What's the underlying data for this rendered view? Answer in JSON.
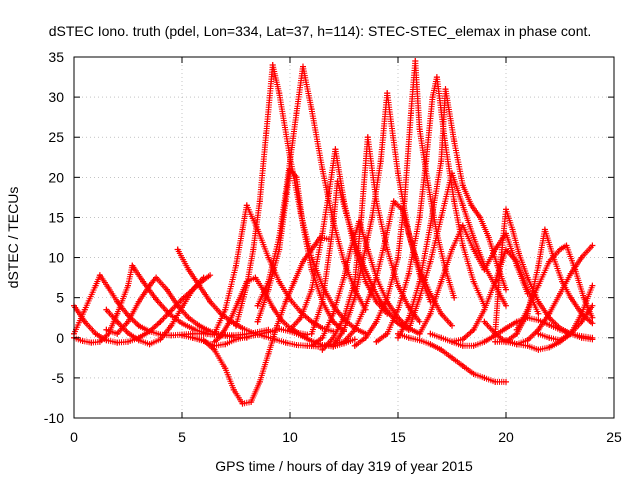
{
  "chart_data": {
    "type": "scatter",
    "title": "dSTEC Iono. truth (pdel, Lon=334, Lat=37, h=114): STEC-STEC_elemax in phase cont.",
    "xlabel": "GPS time / hours of day 319 of year 2015",
    "ylabel": "dSTEC  / TECUs",
    "xlim": [
      0,
      25
    ],
    "ylim": [
      -10,
      35
    ],
    "x_ticks": [
      "0",
      "5",
      "10",
      "15",
      "20",
      "25"
    ],
    "y_ticks": [
      "-10",
      "-5",
      "0",
      "5",
      "10",
      "15",
      "20",
      "25",
      "30",
      "35"
    ],
    "grid": true,
    "marker": "+",
    "color": "#ff0000",
    "series": [
      {
        "x": [
          0.0,
          0.5,
          1.0,
          1.5,
          2.0,
          2.5,
          3.0,
          3.5,
          4.0,
          4.5,
          5.0,
          5.5,
          6.0,
          6.3
        ],
        "y": [
          4.0,
          2.0,
          0.5,
          -0.3,
          -0.6,
          -0.5,
          0.0,
          0.8,
          2.0,
          3.4,
          4.8,
          6.0,
          7.2,
          7.8
        ]
      },
      {
        "x": [
          0.0,
          0.5,
          1.0,
          1.2,
          1.6,
          2.0,
          2.5,
          3.0,
          3.5,
          4.0,
          4.5,
          5.0,
          5.5,
          6.0,
          6.5,
          7.0
        ],
        "y": [
          0.5,
          3.5,
          6.5,
          7.8,
          6.2,
          4.5,
          2.8,
          1.5,
          0.8,
          0.4,
          0.3,
          0.4,
          0.5,
          0.5,
          0.4,
          0.3
        ]
      },
      {
        "x": [
          0.0,
          0.4,
          0.8,
          1.2,
          1.6,
          2.0,
          2.5,
          2.7,
          3.2,
          3.8,
          4.4,
          5.0,
          5.6,
          6.2,
          6.8,
          7.4,
          8.0
        ],
        "y": [
          0.0,
          -0.4,
          -0.6,
          -0.5,
          0.5,
          3.0,
          6.5,
          9.0,
          7.0,
          4.8,
          3.0,
          1.8,
          1.0,
          0.5,
          0.3,
          0.1,
          0.0
        ]
      },
      {
        "x": [
          1.5,
          2.0,
          2.5,
          3.0,
          3.5,
          3.8,
          4.3,
          4.8,
          5.3,
          5.8,
          6.3,
          6.8,
          7.3,
          7.8,
          8.3,
          9.0
        ],
        "y": [
          1.0,
          0.5,
          2.0,
          4.5,
          6.5,
          7.5,
          6.0,
          4.0,
          2.5,
          1.5,
          0.8,
          0.4,
          0.3,
          0.4,
          0.6,
          1.0
        ]
      },
      {
        "x": [
          1.5,
          2.0,
          2.5,
          3.0,
          3.5,
          4.0,
          4.5,
          5.0,
          5.5,
          6.0
        ],
        "y": [
          3.5,
          2.0,
          0.6,
          -0.3,
          -0.8,
          -0.2,
          1.5,
          3.8,
          6.0,
          7.5
        ]
      },
      {
        "x": [
          4.8,
          5.3,
          5.8,
          6.3,
          6.8,
          7.3,
          7.8,
          8.3,
          8.8,
          9.3,
          9.8,
          10.3,
          10.8,
          11.3,
          11.8,
          12.3,
          12.8
        ],
        "y": [
          11.0,
          8.5,
          6.5,
          4.5,
          3.0,
          2.0,
          1.2,
          0.6,
          0.2,
          -0.2,
          -0.6,
          -0.9,
          -1.0,
          -1.1,
          -0.9,
          -0.6,
          -0.3
        ]
      },
      {
        "x": [
          5.0,
          5.5,
          6.0,
          6.5,
          7.0,
          7.5,
          8.0,
          8.5,
          9.0,
          9.5,
          10.0,
          10.5,
          11.0,
          11.5,
          12.0,
          12.5,
          13.0
        ],
        "y": [
          0.3,
          0.0,
          -0.4,
          -1.0,
          -0.8,
          -0.2,
          0.1,
          0.4,
          0.7,
          1.1,
          0.8,
          0.3,
          -0.4,
          -0.9,
          -1.1,
          -0.7,
          -0.2
        ]
      },
      {
        "x": [
          5.5,
          6.0,
          6.5,
          7.0,
          7.4,
          7.8,
          8.2,
          8.6,
          9.0,
          9.4,
          9.8,
          10.2,
          10.6,
          11.0,
          11.4,
          11.8
        ],
        "y": [
          0.0,
          -0.3,
          -1.5,
          -3.8,
          -6.5,
          -8.2,
          -8.0,
          -5.5,
          -2.0,
          1.5,
          4.5,
          7.0,
          9.5,
          11.0,
          12.5,
          12.3
        ]
      },
      {
        "x": [
          6.5,
          6.8,
          7.2,
          7.6,
          8.0,
          8.4,
          8.8,
          9.2,
          9.6,
          10.0,
          10.4,
          10.8
        ],
        "y": [
          -0.5,
          0.2,
          2.0,
          4.5,
          7.0,
          7.5,
          5.8,
          3.8,
          2.2,
          1.2,
          0.6,
          0.4
        ]
      },
      {
        "x": [
          6.5,
          7.0,
          7.5,
          7.8,
          8.0,
          8.5,
          9.0,
          9.5,
          10.0,
          10.5,
          11.0,
          11.5,
          12.0
        ],
        "y": [
          0.5,
          3.5,
          9.0,
          13.5,
          16.5,
          13.5,
          10.0,
          7.0,
          4.8,
          3.2,
          2.0,
          1.2,
          0.8
        ]
      },
      {
        "x": [
          7.5,
          8.0,
          8.3,
          8.6,
          8.9,
          9.2,
          9.5,
          10.0,
          10.5,
          11.0,
          11.5,
          12.0,
          12.5,
          13.0,
          13.5
        ],
        "y": [
          1.5,
          6.5,
          11.0,
          17.0,
          25.5,
          34.0,
          30.5,
          22.5,
          15.5,
          10.0,
          6.5,
          4.0,
          2.3,
          1.2,
          0.5
        ]
      },
      {
        "x": [
          8.5,
          9.0,
          9.5,
          9.8,
          10.0,
          10.3,
          10.6,
          11.0,
          11.5,
          12.0,
          12.5,
          13.0,
          13.5
        ],
        "y": [
          4.0,
          7.0,
          12.5,
          18.0,
          22.0,
          28.0,
          33.8,
          28.5,
          21.0,
          14.5,
          9.5,
          6.0,
          3.5
        ]
      },
      {
        "x": [
          8.5,
          9.0,
          9.5,
          9.8,
          10.0,
          10.3,
          10.6,
          11.0,
          11.5,
          12.0,
          12.5
        ],
        "y": [
          2.0,
          6.0,
          11.0,
          17.0,
          21.0,
          20.0,
          14.0,
          8.5,
          4.5,
          2.0,
          0.8
        ]
      },
      {
        "x": [
          10.0,
          10.5,
          11.0,
          11.5,
          11.8,
          12.1,
          12.5,
          13.0,
          13.5,
          14.0,
          14.5
        ],
        "y": [
          1.0,
          2.5,
          6.0,
          13.0,
          18.0,
          23.5,
          17.0,
          11.0,
          7.0,
          4.5,
          3.0
        ]
      },
      {
        "x": [
          11.0,
          11.5,
          12.0,
          12.5,
          12.8,
          13.2,
          13.6,
          14.0,
          14.5,
          15.0,
          15.5,
          16.0
        ],
        "y": [
          -1.0,
          0.0,
          3.0,
          7.5,
          11.0,
          14.5,
          11.0,
          7.5,
          4.5,
          2.5,
          1.2,
          0.5
        ]
      },
      {
        "x": [
          11.0,
          11.5,
          12.0,
          12.2,
          12.6,
          13.0,
          13.4,
          13.8,
          14.2,
          14.6,
          15.0,
          15.5
        ],
        "y": [
          0.5,
          4.5,
          14.0,
          19.5,
          15.5,
          12.0,
          9.0,
          6.5,
          4.5,
          3.0,
          1.8,
          1.0
        ]
      },
      {
        "x": [
          11.5,
          12.0,
          12.5,
          13.0,
          13.3,
          13.6,
          14.0,
          14.5,
          15.0,
          15.5,
          16.0
        ],
        "y": [
          -1.5,
          0.0,
          2.5,
          7.0,
          15.0,
          25.0,
          17.0,
          11.0,
          6.5,
          3.8,
          2.0
        ]
      },
      {
        "x": [
          12.0,
          12.5,
          13.0,
          13.4,
          13.8,
          14.2,
          14.5,
          15.0,
          15.5,
          16.0,
          16.5
        ],
        "y": [
          -1.0,
          1.0,
          5.0,
          10.0,
          15.0,
          22.0,
          30.5,
          20.5,
          13.0,
          8.0,
          4.5
        ]
      },
      {
        "x": [
          12.5,
          13.0,
          13.5,
          14.0,
          14.4,
          14.8,
          15.2,
          15.6,
          16.0,
          16.5,
          17.0,
          17.5
        ],
        "y": [
          -0.5,
          1.0,
          4.0,
          7.5,
          12.0,
          17.0,
          16.0,
          12.0,
          8.5,
          5.5,
          3.0,
          1.5
        ]
      },
      {
        "x": [
          13.0,
          13.5,
          14.0,
          14.5,
          15.0,
          15.3,
          15.6,
          15.8,
          16.0,
          16.4,
          16.8,
          17.2,
          17.6
        ],
        "y": [
          -1.0,
          0.0,
          2.0,
          5.0,
          10.0,
          17.0,
          28.0,
          34.5,
          26.0,
          19.0,
          13.0,
          8.5,
          5.0
        ]
      },
      {
        "x": [
          14.0,
          14.5,
          15.0,
          15.5,
          16.0,
          16.3,
          16.6,
          16.8,
          17.2,
          17.6,
          18.0,
          18.5,
          19.0
        ],
        "y": [
          -0.5,
          0.5,
          3.5,
          8.0,
          15.0,
          22.0,
          30.0,
          32.5,
          24.0,
          17.0,
          11.5,
          7.0,
          4.0
        ]
      },
      {
        "x": [
          15.0,
          15.5,
          16.0,
          16.5,
          17.0,
          17.2,
          17.6,
          18.0,
          18.4,
          18.8,
          19.2,
          19.6,
          20.0
        ],
        "y": [
          0.0,
          2.5,
          7.0,
          14.0,
          22.0,
          31.0,
          24.5,
          19.0,
          16.5,
          15.0,
          12.5,
          9.0,
          6.0
        ]
      },
      {
        "x": [
          15.5,
          16.0,
          16.5,
          17.0,
          17.5,
          18.0,
          18.5,
          19.0,
          19.5,
          20.0
        ],
        "y": [
          1.0,
          5.0,
          9.5,
          15.0,
          20.5,
          16.5,
          12.5,
          9.0,
          6.5,
          4.0
        ]
      },
      {
        "x": [
          16.0,
          16.5,
          17.0,
          17.5,
          18.0,
          18.5,
          19.0,
          19.5,
          20.0,
          20.5,
          21.0
        ],
        "y": [
          0.5,
          3.0,
          7.0,
          11.0,
          14.0,
          11.0,
          8.5,
          11.0,
          13.0,
          9.0,
          5.5
        ]
      },
      {
        "x": [
          15.0,
          15.5,
          16.0,
          16.5,
          17.0,
          17.5,
          18.0,
          18.5,
          19.0,
          19.5,
          20.0
        ],
        "y": [
          0.5,
          0.0,
          -0.3,
          -0.8,
          -1.5,
          -2.5,
          -3.5,
          -4.5,
          -5.0,
          -5.5,
          -5.5
        ]
      },
      {
        "x": [
          16.5,
          17.0,
          17.5,
          18.0,
          18.5,
          19.0,
          19.5,
          20.0,
          20.5,
          21.0,
          21.5
        ],
        "y": [
          0.5,
          0.0,
          -0.5,
          -0.2,
          1.0,
          3.5,
          7.0,
          11.0,
          9.5,
          6.0,
          3.0
        ]
      },
      {
        "x": [
          17.5,
          18.0,
          18.5,
          19.0,
          19.5,
          20.0,
          20.5,
          21.0,
          21.5,
          22.0,
          22.5,
          23.0,
          23.5,
          24.0
        ],
        "y": [
          -0.5,
          -1.0,
          -1.0,
          -0.5,
          0.3,
          1.2,
          2.0,
          2.5,
          2.2,
          1.6,
          1.0,
          0.5,
          0.2,
          0.0
        ]
      },
      {
        "x": [
          19.5,
          19.7,
          20.0,
          20.3,
          20.6,
          21.0,
          21.5,
          22.0,
          22.5,
          23.0,
          23.5,
          24.0
        ],
        "y": [
          0.5,
          8.0,
          16.0,
          13.5,
          10.5,
          7.5,
          4.5,
          2.5,
          1.2,
          0.5,
          0.0,
          -0.2
        ]
      },
      {
        "x": [
          19.0,
          19.5,
          20.0,
          20.5,
          21.0,
          21.5,
          22.0,
          22.5,
          23.0,
          23.5,
          24.0
        ],
        "y": [
          2.0,
          0.5,
          -0.5,
          -0.8,
          -0.3,
          1.0,
          3.0,
          5.5,
          8.0,
          10.0,
          11.5
        ]
      },
      {
        "x": [
          19.5,
          20.0,
          20.5,
          21.0,
          21.5,
          21.8,
          22.2,
          22.6,
          23.0,
          23.5,
          24.0
        ],
        "y": [
          -0.5,
          -0.5,
          0.5,
          3.0,
          9.0,
          13.5,
          10.0,
          7.0,
          5.0,
          3.0,
          1.8
        ]
      },
      {
        "x": [
          20.0,
          20.5,
          21.0,
          21.5,
          22.0,
          22.5,
          23.0,
          23.5,
          24.0
        ],
        "y": [
          -0.3,
          -0.8,
          -1.0,
          -1.5,
          -1.2,
          -0.5,
          0.5,
          2.0,
          4.0
        ]
      },
      {
        "x": [
          20.5,
          21.0,
          21.5,
          22.0,
          22.5,
          22.8,
          23.2,
          23.6,
          24.0
        ],
        "y": [
          1.0,
          3.5,
          6.5,
          9.5,
          11.0,
          11.5,
          8.5,
          5.0,
          2.5
        ]
      },
      {
        "x": [
          21.5,
          22.0,
          22.5,
          23.0,
          23.5,
          24.0
        ],
        "y": [
          0.5,
          0.0,
          -0.3,
          0.5,
          3.0,
          6.5
        ]
      }
    ]
  }
}
